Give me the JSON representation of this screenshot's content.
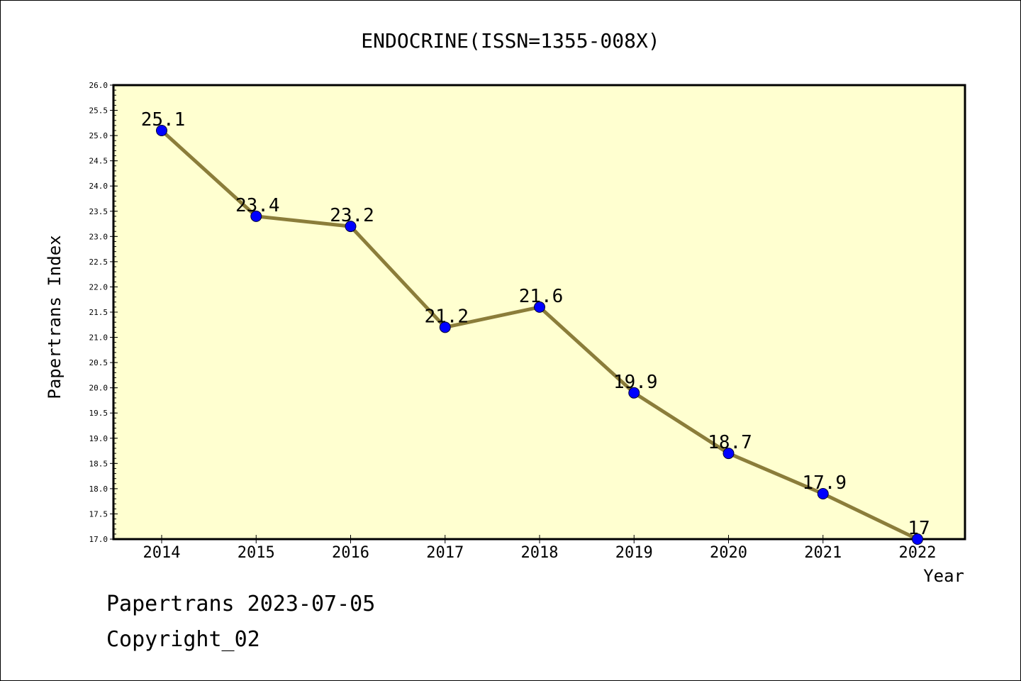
{
  "chart_data": {
    "type": "line",
    "title": "ENDOCRINE(ISSN=1355-008X)",
    "xlabel": "Year",
    "ylabel": "Papertrans Index",
    "categories": [
      "2014",
      "2015",
      "2016",
      "2017",
      "2018",
      "2019",
      "2020",
      "2021",
      "2022"
    ],
    "series": [
      {
        "values": [
          25.1,
          23.4,
          23.2,
          21.2,
          21.6,
          19.9,
          18.7,
          17.9,
          17
        ],
        "labels": [
          "25.1",
          "23.4",
          "23.2",
          "21.2",
          "21.6",
          "19.9",
          "18.7",
          "17.9",
          "17"
        ]
      }
    ],
    "ylim": [
      17.0,
      26.0
    ],
    "yticks": [
      "17.0",
      "17.5",
      "18.0",
      "18.5",
      "19.0",
      "19.5",
      "20.0",
      "20.5",
      "21.0",
      "21.5",
      "22.0",
      "22.5",
      "23.0",
      "23.5",
      "24.0",
      "24.5",
      "25.0",
      "25.5",
      "26.0"
    ],
    "grid": false,
    "colors": {
      "plot_background": "#ffffd0",
      "line": "#8b7d3a",
      "marker": "#0000ff"
    }
  },
  "footer": {
    "line1": "Papertrans 2023-07-05",
    "line2": "Copyright_02"
  }
}
